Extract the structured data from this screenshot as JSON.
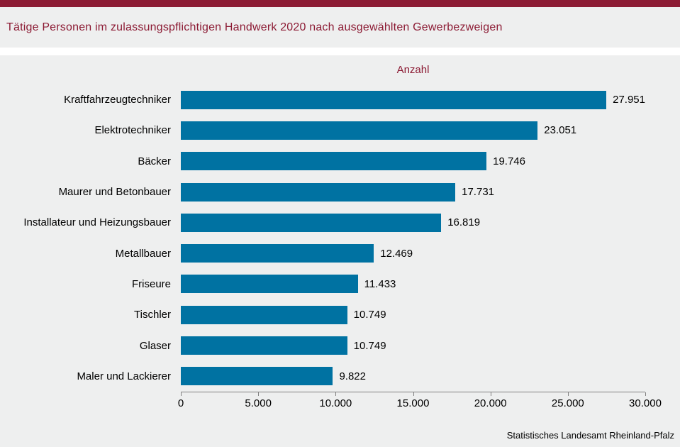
{
  "header": {
    "title": "Tätige Personen im zulassungspflichtigen Handwerk 2020 nach ausgewählten Gewerbezweigen"
  },
  "chart_data": {
    "type": "bar",
    "orientation": "horizontal",
    "axis_title": "Anzahl",
    "categories": [
      "Kraftfahrzeugtechniker",
      "Elektrotechniker",
      "Bäcker",
      "Maurer und Betonbauer",
      "Installateur und Heizungsbauer",
      "Metallbauer",
      "Friseure",
      "Tischler",
      "Glaser",
      "Maler und Lackierer"
    ],
    "values": [
      27951,
      23051,
      19746,
      17731,
      16819,
      12469,
      11433,
      10749,
      10749,
      9822
    ],
    "value_labels": [
      "27.951",
      "23.051",
      "19.746",
      "17.731",
      "16.819",
      "12.469",
      "11.433",
      "10.749",
      "10.749",
      "9.822"
    ],
    "x_ticks": [
      0,
      5000,
      10000,
      15000,
      20000,
      25000,
      30000
    ],
    "x_tick_labels": [
      "0",
      "5.000",
      "10.000",
      "15.000",
      "20.000",
      "25.000",
      "30.000"
    ],
    "xlim": [
      0,
      30000
    ],
    "grid": false,
    "legend": "none",
    "bar_color": "#0072A2"
  },
  "colors": {
    "accent_maroon": "#8C1B34",
    "bar_blue": "#0072A2",
    "background_gray": "#EEEFEF",
    "axis_line_gray": "#808080"
  },
  "footer": {
    "source": "Statistisches Landesamt Rheinland-Pfalz"
  }
}
